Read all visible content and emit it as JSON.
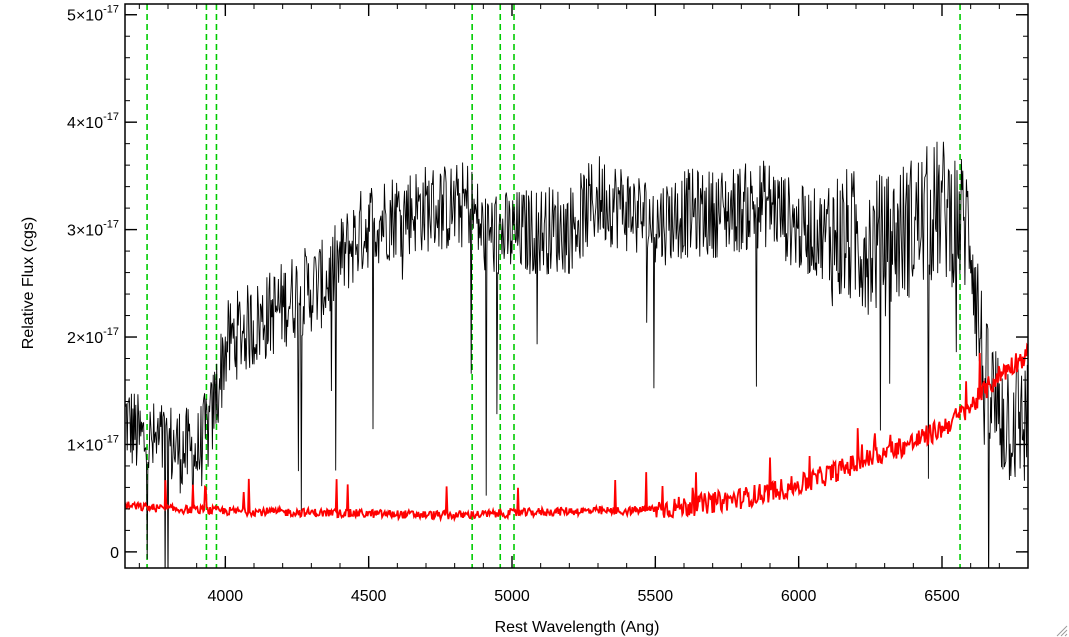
{
  "chart_data": {
    "type": "line",
    "xlabel": "Rest Wavelength (Ang)",
    "ylabel": "Relative Flux (cgs)",
    "xlim": [
      3650,
      6800
    ],
    "ylim": [
      -0.15,
      5.1
    ],
    "y_scale_factor": "1e-17",
    "x_ticks": [
      {
        "value": 4000,
        "label": "4000"
      },
      {
        "value": 4500,
        "label": "4500"
      },
      {
        "value": 5000,
        "label": "5000"
      },
      {
        "value": 5500,
        "label": "5500"
      },
      {
        "value": 6000,
        "label": "6000"
      },
      {
        "value": 6500,
        "label": "6500"
      }
    ],
    "x_minor_step": 100,
    "y_ticks": [
      {
        "value": 0,
        "mantissa": "0",
        "exponent": ""
      },
      {
        "value": 1,
        "mantissa": "1×10",
        "exponent": "-17"
      },
      {
        "value": 2,
        "mantissa": "2×10",
        "exponent": "-17"
      },
      {
        "value": 3,
        "mantissa": "3×10",
        "exponent": "-17"
      },
      {
        "value": 4,
        "mantissa": "4×10",
        "exponent": "-17"
      },
      {
        "value": 5,
        "mantissa": "5×10",
        "exponent": "-17"
      }
    ],
    "y_minor_step": 0.2,
    "reference_lines": {
      "color": "#00cc00",
      "style": "dashed",
      "x": [
        3727,
        3934,
        3969,
        4861,
        4959,
        5007,
        6563
      ]
    },
    "series": [
      {
        "color": "#000000",
        "noise": 0.42,
        "points": [
          [
            3650,
            1.25
          ],
          [
            3700,
            1.05
          ],
          [
            3750,
            1.0
          ],
          [
            3800,
            1.0
          ],
          [
            3850,
            0.95
          ],
          [
            3900,
            0.9
          ],
          [
            3950,
            1.2
          ],
          [
            4000,
            1.9
          ],
          [
            4050,
            2.05
          ],
          [
            4100,
            2.1
          ],
          [
            4150,
            2.2
          ],
          [
            4200,
            2.3
          ],
          [
            4250,
            2.4
          ],
          [
            4300,
            2.45
          ],
          [
            4350,
            2.5
          ],
          [
            4400,
            2.7
          ],
          [
            4450,
            2.9
          ],
          [
            4500,
            3.05
          ],
          [
            4600,
            3.15
          ],
          [
            4700,
            3.2
          ],
          [
            4800,
            3.2
          ],
          [
            4850,
            3.25
          ],
          [
            4900,
            2.95
          ],
          [
            5000,
            2.95
          ],
          [
            5100,
            3.0
          ],
          [
            5200,
            3.0
          ],
          [
            5300,
            3.3
          ],
          [
            5400,
            3.2
          ],
          [
            5500,
            3.05
          ],
          [
            5600,
            3.15
          ],
          [
            5700,
            3.15
          ],
          [
            5800,
            3.2
          ],
          [
            5900,
            3.25
          ],
          [
            6000,
            3.0
          ],
          [
            6100,
            2.95
          ],
          [
            6200,
            2.9
          ],
          [
            6300,
            2.85
          ],
          [
            6400,
            3.05
          ],
          [
            6500,
            3.2
          ],
          [
            6600,
            3.0
          ],
          [
            6650,
            1.5
          ],
          [
            6700,
            1.3
          ],
          [
            6800,
            1.2
          ]
        ]
      },
      {
        "color": "#ff0000",
        "noise": 0.04,
        "points": [
          [
            3650,
            0.43
          ],
          [
            3800,
            0.4
          ],
          [
            4000,
            0.38
          ],
          [
            4200,
            0.37
          ],
          [
            4400,
            0.36
          ],
          [
            4600,
            0.35
          ],
          [
            4800,
            0.34
          ],
          [
            5000,
            0.36
          ],
          [
            5200,
            0.38
          ],
          [
            5400,
            0.38
          ],
          [
            5600,
            0.42
          ],
          [
            5800,
            0.5
          ],
          [
            6000,
            0.62
          ],
          [
            6100,
            0.72
          ],
          [
            6200,
            0.82
          ],
          [
            6300,
            0.92
          ],
          [
            6400,
            1.02
          ],
          [
            6500,
            1.15
          ],
          [
            6550,
            1.25
          ],
          [
            6600,
            1.35
          ],
          [
            6650,
            1.5
          ],
          [
            6700,
            1.65
          ],
          [
            6800,
            1.85
          ]
        ]
      }
    ]
  }
}
